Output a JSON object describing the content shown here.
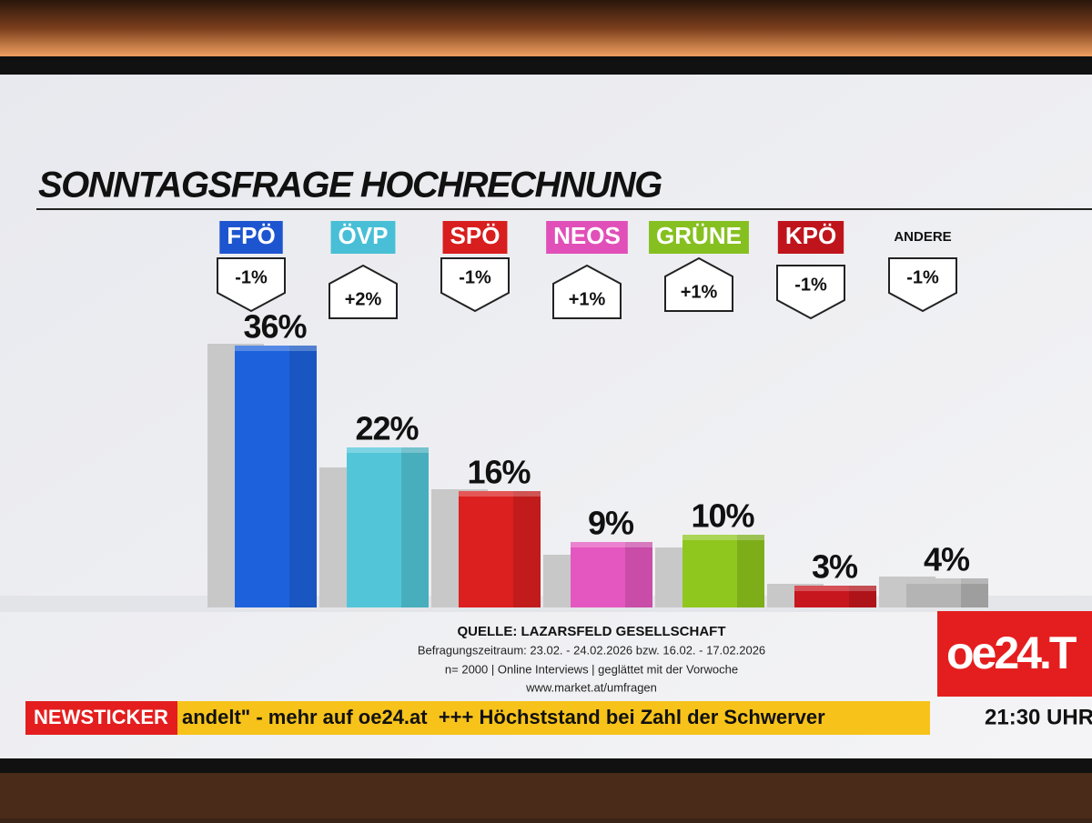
{
  "chart_data": {
    "type": "bar",
    "title": "SONNTAGSFRAGE HOCHRECHNUNG",
    "categories": [
      "FPÖ",
      "ÖVP",
      "SPÖ",
      "NEOS",
      "GRÜNE",
      "KPÖ",
      "ANDERE"
    ],
    "values": [
      36,
      22,
      16,
      9,
      10,
      3,
      4
    ],
    "value_labels": [
      "36%",
      "22%",
      "16%",
      "9%",
      "10%",
      "3%",
      "4%"
    ],
    "previous_values": [
      37,
      20,
      17,
      8,
      9,
      4,
      5
    ],
    "changes": [
      -1,
      2,
      -1,
      1,
      1,
      -1,
      -1
    ],
    "change_labels": [
      "-1%",
      "+2%",
      "-1%",
      "+1%",
      "+1%",
      "-1%",
      "-1%"
    ],
    "colors": [
      "#1d62dc",
      "#52c6d8",
      "#dc1f1f",
      "#e457c0",
      "#8fc71e",
      "#c8161e",
      "#b4b4b4"
    ],
    "label_colors": [
      "#1d55d0",
      "#48bfd6",
      "#d81e1e",
      "#e050b8",
      "#86c020",
      "#c0141c",
      null
    ],
    "previous_color": "#c8c8c8"
  },
  "source": {
    "title": "QUELLE: LAZARSFELD GESELLSCHAFT",
    "lines": [
      "Befragungszeitraum: 23.02. - 24.02.2026 bzw. 16.02. - 17.02.2026",
      "n= 2000 | Online Interviews | geglättet mit der Vorwoche",
      "www.market.at/umfragen"
    ]
  },
  "ticker": {
    "label": "NEWSTICKER",
    "text": "andelt\" - mehr auf oe24.at  +++ Höchststand bei Zahl der Schwerver"
  },
  "logo": "oe24.T",
  "time": "21:30 UHR"
}
